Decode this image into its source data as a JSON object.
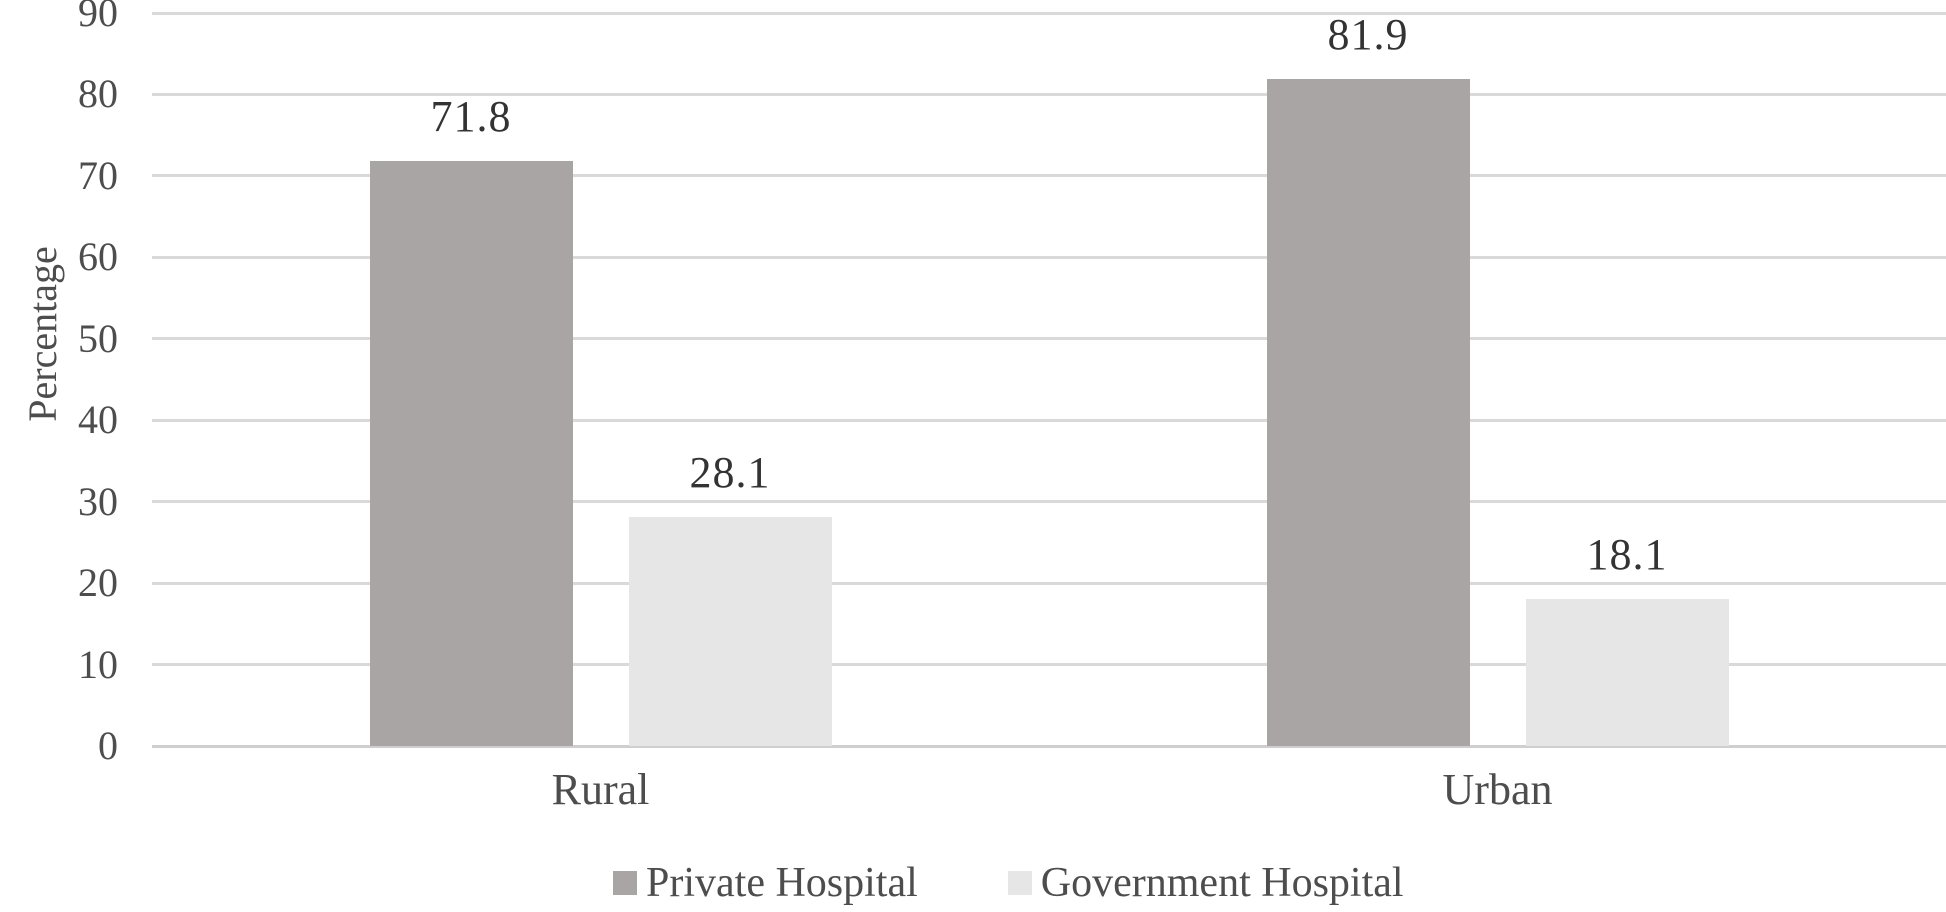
{
  "chart_data": {
    "type": "bar",
    "title": "",
    "categories": [
      "Rural",
      "Urban"
    ],
    "series": [
      {
        "name": "Private Hospital",
        "color": "#a9a5a4",
        "values": [
          71.8,
          81.9
        ]
      },
      {
        "name": "Government Hospital",
        "color": "#e6e6e6",
        "values": [
          28.1,
          18.1
        ]
      }
    ],
    "data_labels": [
      [
        "71.8",
        "81.9"
      ],
      [
        "28.1",
        "18.1"
      ]
    ],
    "ylabel": "Percentage",
    "xlabel": "",
    "ylim": [
      0,
      90
    ],
    "ytick_step": 10,
    "yticks": [
      0,
      10,
      20,
      30,
      40,
      50,
      60,
      70,
      80,
      90
    ],
    "grid": "horizontal",
    "legend_position": "bottom",
    "legend_entries": [
      "Private Hospital",
      "Government Hospital"
    ]
  },
  "colors": {
    "background": "#ffffff",
    "gridline": "#d9d9d9",
    "baseline": "#cfcfcf",
    "tick_text": "#4d4d4d",
    "category_text": "#4d4d4d",
    "data_label_text": "#333333",
    "legend_text": "#4d4d4d",
    "series_private": "#a9a5a4",
    "series_government": "#e6e6e6"
  }
}
